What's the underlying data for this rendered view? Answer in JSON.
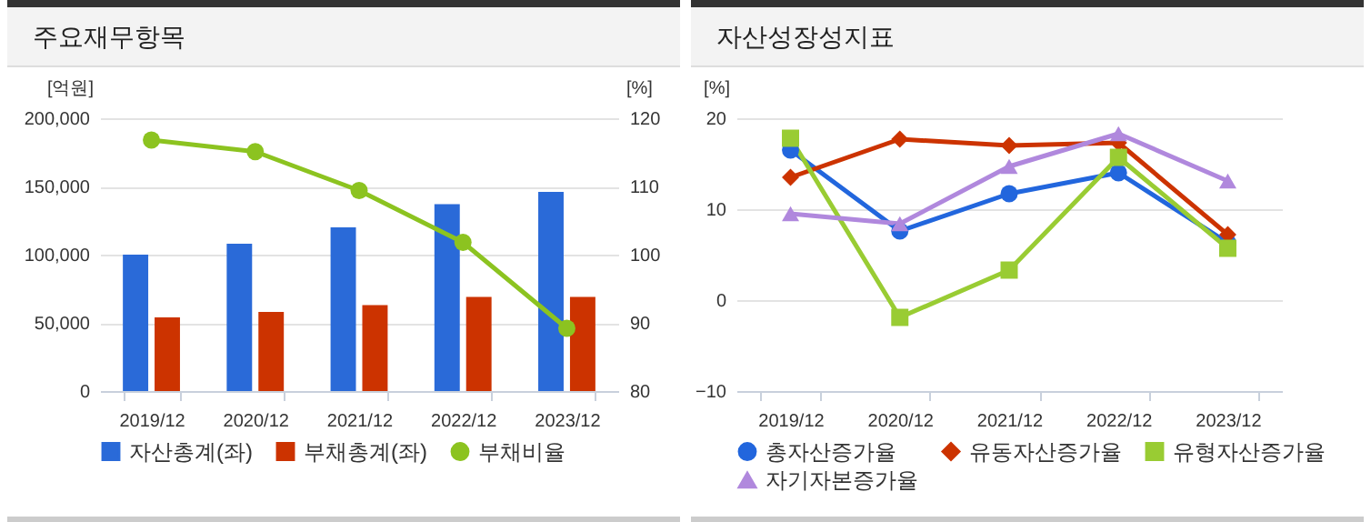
{
  "chart_data": [
    {
      "type": "bar",
      "title": "주요재무항목",
      "categories": [
        "2019/12",
        "2020/12",
        "2021/12",
        "2022/12",
        "2023/12"
      ],
      "ylabel": "[억원]",
      "y2label": "[%]",
      "ylim": [
        0,
        200000
      ],
      "yticks": [
        0,
        {
          "value": 50000,
          "label": "50,000"
        },
        {
          "value": 100000,
          "label": "100,000"
        },
        {
          "value": 150000,
          "label": "150,000"
        },
        {
          "value": 200000,
          "label": "200,000"
        }
      ],
      "y2lim": [
        80,
        120
      ],
      "y2ticks": [
        80,
        90,
        100,
        110,
        120
      ],
      "grid": "y",
      "legend": "bottom",
      "series": [
        {
          "name": "자산총계(좌)",
          "color": "#2a6ad8",
          "values": [
            100000,
            108000,
            120000,
            137000,
            146000
          ]
        },
        {
          "name": "부채총계(좌)",
          "color": "#cc3300",
          "values": [
            54000,
            58000,
            63000,
            69000,
            69000
          ]
        },
        {
          "name": "부채비율",
          "type": "line",
          "axis": "y2",
          "marker": "circle",
          "color": "#8cc320",
          "values": [
            116.8,
            115.1,
            109.4,
            101.8,
            89.2
          ]
        }
      ]
    },
    {
      "type": "line",
      "title": "자산성장성지표",
      "categories": [
        "2019/12",
        "2020/12",
        "2021/12",
        "2022/12",
        "2023/12"
      ],
      "ylabel": "[%]",
      "ylim": [
        -10,
        20
      ],
      "yticks": [
        -10,
        0,
        10,
        20
      ],
      "grid": "y",
      "legend": "bottom",
      "series": [
        {
          "name": "총자산증가율",
          "marker": "circle",
          "color": "#2266dd",
          "values": [
            16.5,
            7.6,
            11.7,
            14.0,
            6.3
          ]
        },
        {
          "name": "유동자산증가율",
          "marker": "diamond",
          "color": "#cc3300",
          "values": [
            13.5,
            17.7,
            17.0,
            17.3,
            7.2
          ]
        },
        {
          "name": "유형자산증가율",
          "marker": "square",
          "color": "#99cc33",
          "values": [
            17.8,
            -1.9,
            3.3,
            15.7,
            5.7
          ]
        },
        {
          "name": "자기자본증가율",
          "marker": "triangle",
          "color": "#b088dd",
          "values": [
            9.5,
            8.4,
            14.7,
            18.3,
            13.1
          ]
        }
      ]
    }
  ]
}
